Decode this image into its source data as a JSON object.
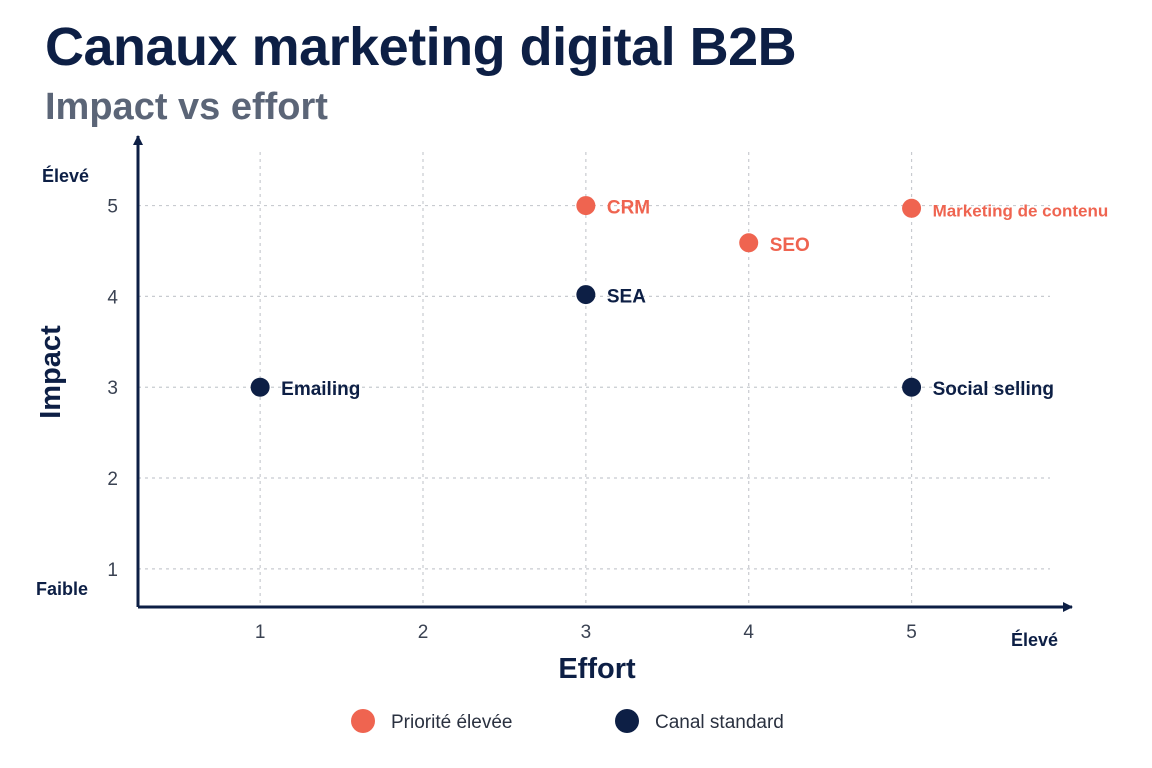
{
  "chart_data": {
    "type": "scatter",
    "title": "Canaux marketing digital B2B",
    "subtitle": "Impact vs effort",
    "xlabel": "Effort",
    "ylabel": "Impact",
    "xlim": [
      0.25,
      5.85
    ],
    "ylim": [
      0.58,
      5.7
    ],
    "x_ticks": [
      1,
      2,
      3,
      4,
      5
    ],
    "y_ticks": [
      1,
      2,
      3,
      4,
      5
    ],
    "x_end_label": "Élevé",
    "y_top_label": "Élevé",
    "y_bottom_label": "Faible",
    "grid": true,
    "legend_position": "bottom-center",
    "colors": {
      "priority": "#ef6450",
      "standard": "#0d1f45",
      "axis": "#0d1f45",
      "grid": "#c8cbd0"
    },
    "legend": [
      {
        "key": "priority",
        "label": "Priorité élevée"
      },
      {
        "key": "standard",
        "label": "Canal standard"
      }
    ],
    "points": [
      {
        "label": "CRM",
        "x": 3,
        "y": 5,
        "category": "priority"
      },
      {
        "label": "Marketing de contenu",
        "x": 5,
        "y": 4.97,
        "category": "priority"
      },
      {
        "label": "SEO",
        "x": 4,
        "y": 4.59,
        "category": "priority"
      },
      {
        "label": "SEA",
        "x": 3,
        "y": 4.02,
        "category": "standard"
      },
      {
        "label": "Emailing",
        "x": 1,
        "y": 3,
        "category": "standard"
      },
      {
        "label": "Social selling",
        "x": 5,
        "y": 3,
        "category": "standard"
      }
    ]
  }
}
